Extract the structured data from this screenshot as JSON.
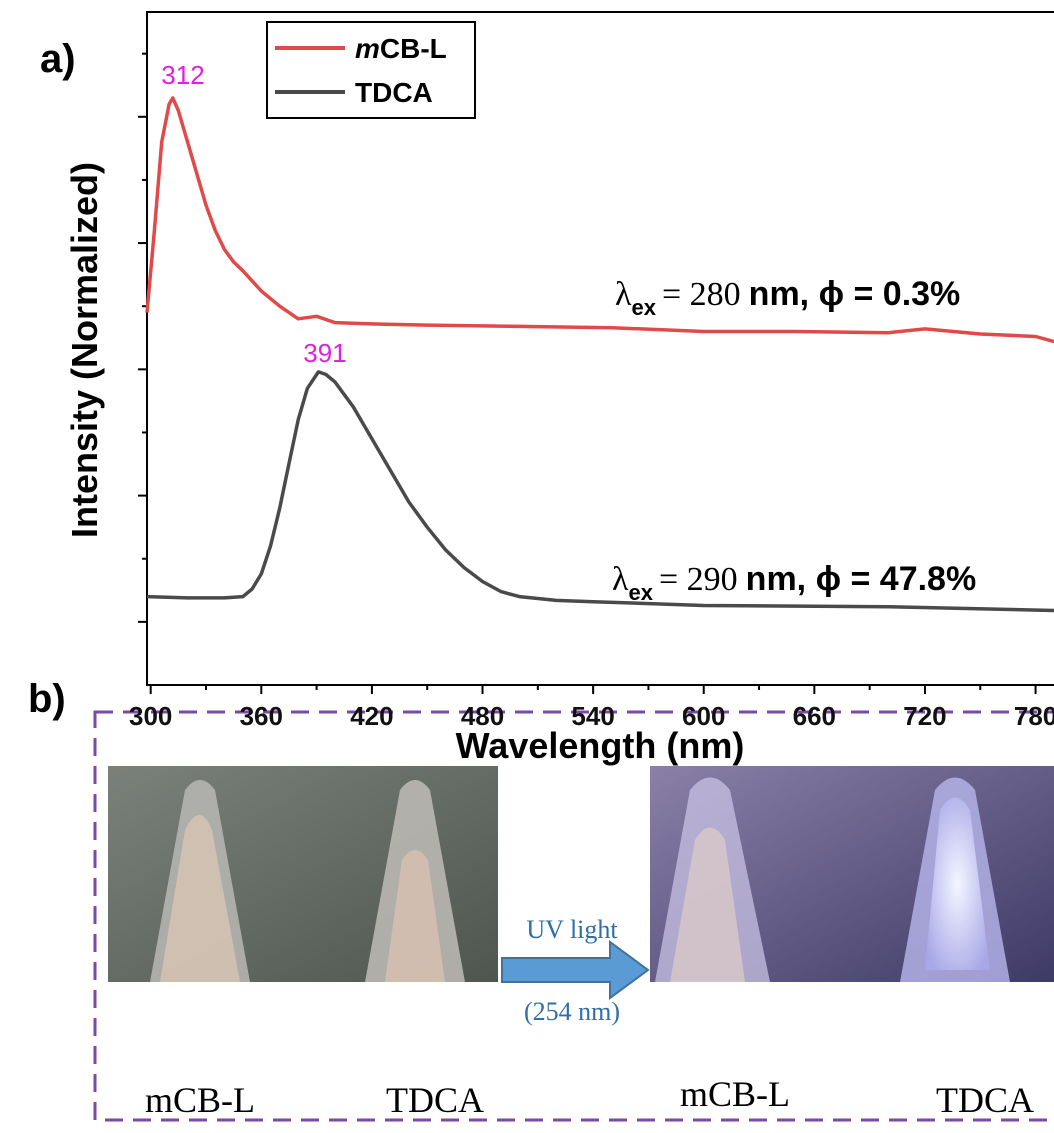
{
  "chart_data": {
    "type": "line",
    "xlabel": "Wavelength (nm)",
    "ylabel": "Intensity (Normalized)",
    "xlim": [
      298,
      790
    ],
    "xticks": [
      300,
      360,
      420,
      480,
      540,
      600,
      660,
      720,
      780
    ],
    "xminorticks": [
      330,
      390,
      450,
      510,
      570,
      630,
      690,
      750
    ],
    "ylim": [
      0,
      5.33
    ],
    "yticks": [
      0.5,
      1.5,
      2.5,
      3.5,
      4.5
    ],
    "yminorticks": [
      1,
      2,
      3,
      4,
      5
    ],
    "legend": "top-left",
    "series": [
      {
        "name": "mCB-L",
        "color": "#e04a4a",
        "x": [
          298,
          302,
          306,
          310,
          312,
          315,
          320,
          325,
          330,
          335,
          340,
          345,
          350,
          355,
          360,
          370,
          380,
          390,
          400,
          420,
          450,
          500,
          550,
          600,
          650,
          700,
          720,
          750,
          780,
          790
        ],
        "values": [
          2.95,
          3.6,
          4.3,
          4.6,
          4.65,
          4.55,
          4.3,
          4.05,
          3.8,
          3.6,
          3.45,
          3.35,
          3.28,
          3.2,
          3.12,
          3.0,
          2.9,
          2.92,
          2.87,
          2.86,
          2.85,
          2.84,
          2.83,
          2.8,
          2.8,
          2.79,
          2.82,
          2.78,
          2.76,
          2.72
        ]
      },
      {
        "name": "TDCA",
        "color": "#4a4a4a",
        "x": [
          298,
          320,
          340,
          350,
          355,
          360,
          365,
          370,
          375,
          380,
          385,
          391,
          395,
          400,
          410,
          420,
          430,
          440,
          450,
          460,
          470,
          480,
          490,
          500,
          520,
          540,
          600,
          700,
          790
        ],
        "values": [
          0.7,
          0.69,
          0.69,
          0.7,
          0.76,
          0.88,
          1.1,
          1.4,
          1.75,
          2.1,
          2.35,
          2.48,
          2.46,
          2.4,
          2.2,
          1.95,
          1.7,
          1.45,
          1.25,
          1.07,
          0.93,
          0.82,
          0.74,
          0.7,
          0.67,
          0.66,
          0.63,
          0.62,
          0.59
        ]
      }
    ],
    "peak_labels": [
      "312",
      "391"
    ],
    "annotations": [
      {
        "lambda": "λ",
        "sub": "ex",
        "eq": "= 280",
        "rest": "nm, ϕ = 0.3%"
      },
      {
        "lambda": "λ",
        "sub": "ex",
        "eq": "= 290",
        "rest": "nm, ϕ = 47.8%"
      }
    ]
  },
  "panel_labels": [
    "a)",
    "b)"
  ],
  "panel_b": {
    "before_labels": [
      "mCB-L",
      "TDCA"
    ],
    "arrow_top": "UV light",
    "arrow_bottom": "(254 nm)",
    "after_labels": [
      "mCB-L",
      "TDCA"
    ]
  }
}
